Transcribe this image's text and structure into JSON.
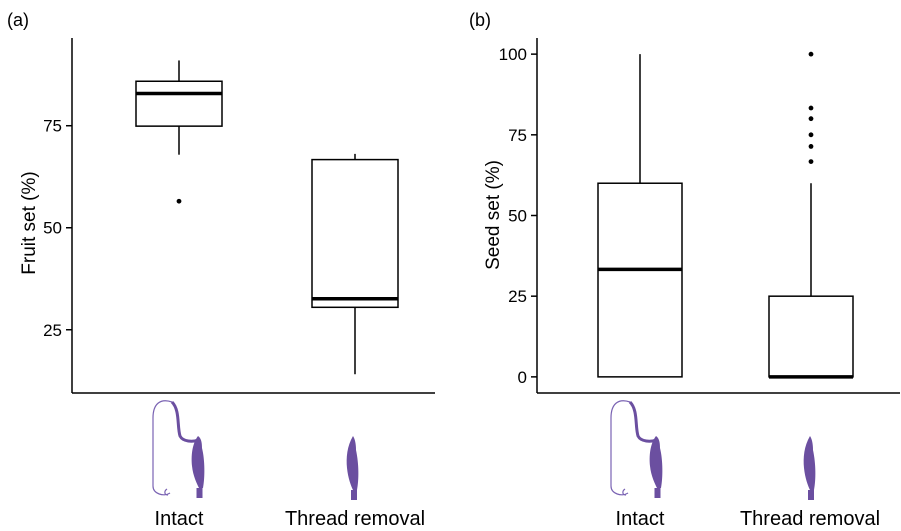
{
  "panel_labels": [
    "(a)",
    "(b)"
  ],
  "category_labels": [
    "Intact",
    "Thread removal"
  ],
  "colors": {
    "box_stroke": "#000000",
    "median": "#000000",
    "icon_fill": "#6b4fa0",
    "thread": "#7a63b3"
  },
  "icons": [
    "intact-petal-with-thread-icon",
    "thread-removed-petal-icon"
  ],
  "chart_data": [
    {
      "type": "box",
      "panel": "(a)",
      "title": "",
      "xlabel": "",
      "ylabel": "Fruit set (%)",
      "categories": [
        "Intact",
        "Thread removal"
      ],
      "ylim": [
        9.5,
        96.5
      ],
      "yticks": [
        25,
        50,
        75
      ],
      "ytick_labels": [
        "25",
        "50",
        "75"
      ],
      "boxes": [
        {
          "category": "Intact",
          "whisker_low": 67.9,
          "q1": 74.9,
          "median": 82.9,
          "q3": 85.9,
          "whisker_high": 91.0,
          "outliers": [
            56.5
          ]
        },
        {
          "category": "Thread removal",
          "whisker_low": 14.1,
          "q1": 30.5,
          "median": 32.6,
          "q3": 66.7,
          "whisker_high": 68.1,
          "outliers": []
        }
      ]
    },
    {
      "type": "box",
      "panel": "(b)",
      "title": "",
      "xlabel": "",
      "ylabel": "Seed set (%)",
      "categories": [
        "Intact",
        "Thread removal"
      ],
      "ylim": [
        -5,
        105
      ],
      "yticks": [
        0,
        25,
        50,
        75,
        100
      ],
      "ytick_labels": [
        "0",
        "25",
        "50",
        "75",
        "100"
      ],
      "boxes": [
        {
          "category": "Intact",
          "whisker_low": 0,
          "q1": 0,
          "median": 33.3,
          "q3": 60,
          "whisker_high": 100,
          "outliers": []
        },
        {
          "category": "Thread removal",
          "whisker_low": 0,
          "q1": 0,
          "median": 0,
          "q3": 25,
          "whisker_high": 60,
          "outliers": [
            66.7,
            71.4,
            75,
            80,
            83.3,
            100
          ]
        }
      ]
    }
  ]
}
